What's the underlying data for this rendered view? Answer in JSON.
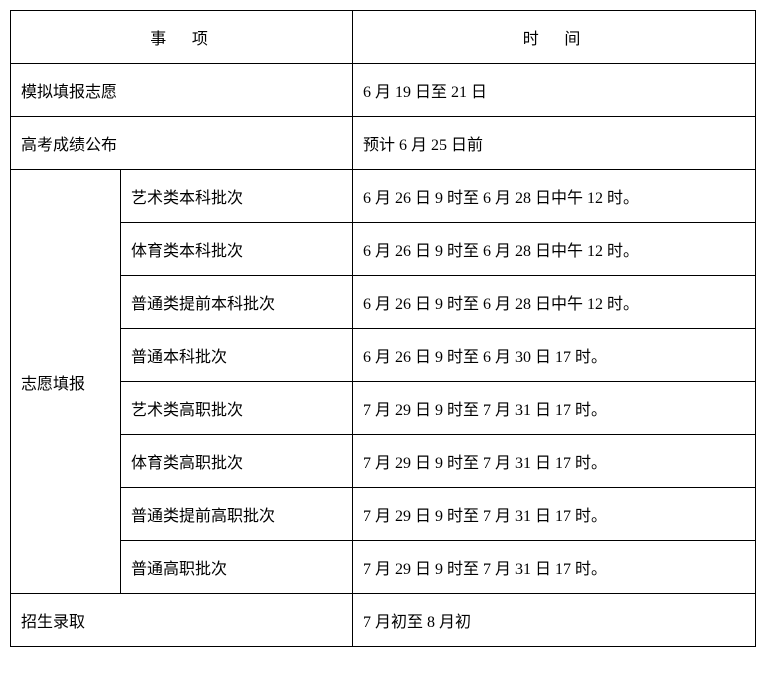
{
  "table": {
    "headers": {
      "item": "事　项",
      "time": "时　间"
    },
    "simpleRows": {
      "mock": {
        "label": "模拟填报志愿",
        "time": "6 月 19 日至 21 日"
      },
      "score": {
        "label": "高考成绩公布",
        "time": "预计 6 月 25 日前"
      },
      "admission": {
        "label": "招生录取",
        "time": "7 月初至 8 月初"
      }
    },
    "application": {
      "groupLabel": "志愿填报",
      "rows": [
        {
          "label": "艺术类本科批次",
          "time": "6 月 26 日 9 时至 6 月 28 日中午 12 时。"
        },
        {
          "label": "体育类本科批次",
          "time": "6 月 26 日 9 时至 6 月 28 日中午 12 时。"
        },
        {
          "label": "普通类提前本科批次",
          "time": "6 月 26 日 9 时至 6 月 28 日中午 12 时。"
        },
        {
          "label": "普通本科批次",
          "time": "6 月 26 日 9 时至 6 月 30 日 17 时。"
        },
        {
          "label": "艺术类高职批次",
          "time": "7 月 29 日 9 时至 7 月 31 日 17 时。"
        },
        {
          "label": "体育类高职批次",
          "time": "7 月 29 日 9 时至 7 月 31 日 17 时。"
        },
        {
          "label": "普通类提前高职批次",
          "time": "7 月 29 日 9 时至 7 月 31 日 17 时。"
        },
        {
          "label": "普通高职批次",
          "time": "7 月 29 日 9 时至 7 月 31 日 17 时。"
        }
      ]
    }
  }
}
